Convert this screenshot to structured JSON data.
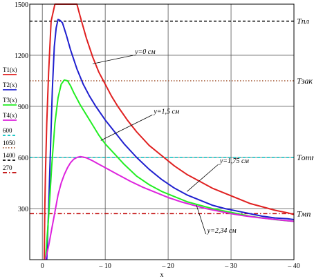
{
  "chart_data": {
    "type": "line",
    "title": "",
    "xlabel": "x",
    "ylabel": "",
    "xlim": [
      2,
      -40
    ],
    "ylim": [
      0,
      1500
    ],
    "xtick_labels": [
      "0",
      "– 10",
      "– 20",
      "– 30",
      "– 40"
    ],
    "ytick_labels": [
      "300",
      "600",
      "900",
      "1200",
      "1500"
    ],
    "xtick_values": [
      0,
      -10,
      -20,
      -30,
      -40
    ],
    "ytick_values": [
      300,
      600,
      900,
      1200,
      1500
    ],
    "grid": true,
    "legend_position": "left",
    "series": [
      {
        "name": "T1(x)",
        "color": "#e02020",
        "x": [
          -0.3,
          -0.35,
          -0.4,
          -0.5,
          -0.7,
          -1.0,
          -1.4,
          -2.0,
          -2.8,
          -3.5,
          -4.0,
          -4.5,
          -5.0,
          -5.5,
          -6.0,
          -7.0,
          -8.0,
          -9.0,
          -10.0,
          -11.0,
          -12.0,
          -13.5,
          -15.0,
          -17.0,
          -19.0,
          -21.0,
          -23.0,
          -25.0,
          -27.0,
          -29.0,
          -31.0,
          -33.0,
          -35.0,
          -37.0,
          -39.0,
          -40.0
        ],
        "y": [
          0,
          150,
          300,
          500,
          800,
          1100,
          1400,
          1500,
          1500,
          1500,
          1500,
          1500,
          1500,
          1500,
          1430,
          1300,
          1190,
          1100,
          1030,
          960,
          900,
          820,
          750,
          670,
          610,
          550,
          500,
          460,
          420,
          390,
          360,
          330,
          310,
          290,
          275,
          265
        ]
      },
      {
        "name": "T2(x)",
        "color": "#1f1fcf",
        "x": [
          -0.7,
          -1.0,
          -1.3,
          -1.6,
          -1.9,
          -2.2,
          -2.5,
          -2.8,
          -3.2,
          -3.8,
          -4.5,
          -5.5,
          -6.5,
          -7.5,
          -8.5,
          -10.0,
          -11.5,
          -13.0,
          -15.0,
          -17.0,
          -19.0,
          -21.0,
          -23.0,
          -25.0,
          -27.0,
          -29.0,
          -31.0,
          -33.0,
          -35.0,
          -37.0,
          -39.0,
          -40.0
        ],
        "y": [
          0,
          300,
          650,
          1000,
          1250,
          1360,
          1410,
          1405,
          1390,
          1320,
          1230,
          1120,
          1030,
          960,
          900,
          820,
          750,
          680,
          600,
          530,
          470,
          420,
          380,
          350,
          320,
          300,
          285,
          270,
          255,
          245,
          240,
          235
        ]
      },
      {
        "name": "T3(x)",
        "color": "#22ee22",
        "x": [
          -0.5,
          -1.0,
          -1.5,
          -2.0,
          -2.5,
          -3.0,
          -3.5,
          -4.0,
          -4.5,
          -5.0,
          -6.0,
          -7.0,
          -8.0,
          -9.0,
          -10.0,
          -11.5,
          -13.0,
          -15.0,
          -17.0,
          -19.0,
          -21.0,
          -23.0,
          -25.0,
          -27.0,
          -29.0,
          -31.0,
          -33.0,
          -35.0,
          -37.0,
          -39.0,
          -40.0
        ],
        "y": [
          0,
          250,
          550,
          800,
          950,
          1030,
          1055,
          1050,
          1020,
          980,
          910,
          850,
          790,
          730,
          680,
          620,
          560,
          490,
          440,
          400,
          370,
          340,
          320,
          300,
          285,
          270,
          255,
          245,
          235,
          228,
          225
        ]
      },
      {
        "name": "T4(x)",
        "color": "#dd22dd",
        "x": [
          -0.5,
          -1.0,
          -1.5,
          -2.0,
          -2.5,
          -3.0,
          -3.5,
          -4.0,
          -4.5,
          -5.0,
          -5.5,
          -6.0,
          -6.5,
          -7.0,
          -8.0,
          -9.0,
          -10.0,
          -12.0,
          -14.0,
          -16.0,
          -18.0,
          -20.0,
          -22.0,
          -24.0,
          -26.0,
          -28.0,
          -30.0,
          -32.0,
          -34.0,
          -36.0,
          -38.0,
          -40.0
        ],
        "y": [
          0,
          80,
          180,
          280,
          380,
          450,
          500,
          540,
          570,
          590,
          600,
          605,
          602,
          598,
          580,
          560,
          540,
          500,
          460,
          425,
          395,
          365,
          340,
          320,
          300,
          285,
          270,
          258,
          248,
          240,
          232,
          225
        ]
      }
    ],
    "reference_lines": [
      {
        "name": "600",
        "value": 600,
        "color": "#00c0c0",
        "style": "dashed"
      },
      {
        "name": "1050",
        "value": 1050,
        "color": "#a0522d",
        "style": "dotted"
      },
      {
        "name": "1400",
        "value": 1400,
        "color": "#000000",
        "style": "dashed"
      },
      {
        "name": "270",
        "value": 270,
        "color": "#c00000",
        "style": "dashdot"
      }
    ],
    "right_labels": [
      {
        "text": "Tпл",
        "value": 1400
      },
      {
        "text": "Tзак",
        "value": 1050
      },
      {
        "text": "Tотп",
        "value": 600
      },
      {
        "text": "Tмп",
        "value": 270
      }
    ],
    "annotations": [
      {
        "text": "y=0 см",
        "x": -14.5,
        "y": 1200,
        "point_x": -8.0,
        "point_y": 1150
      },
      {
        "text": "y=1,5 см",
        "x": -17.5,
        "y": 850,
        "point_x": -9.3,
        "point_y": 700
      },
      {
        "text": "y=1,75 см",
        "x": -28.0,
        "y": 560,
        "point_x": -23.0,
        "point_y": 400
      },
      {
        "text": "y=2,34 см",
        "x": -26.0,
        "y": 150,
        "point_x": -24.5,
        "point_y": 320
      }
    ]
  }
}
